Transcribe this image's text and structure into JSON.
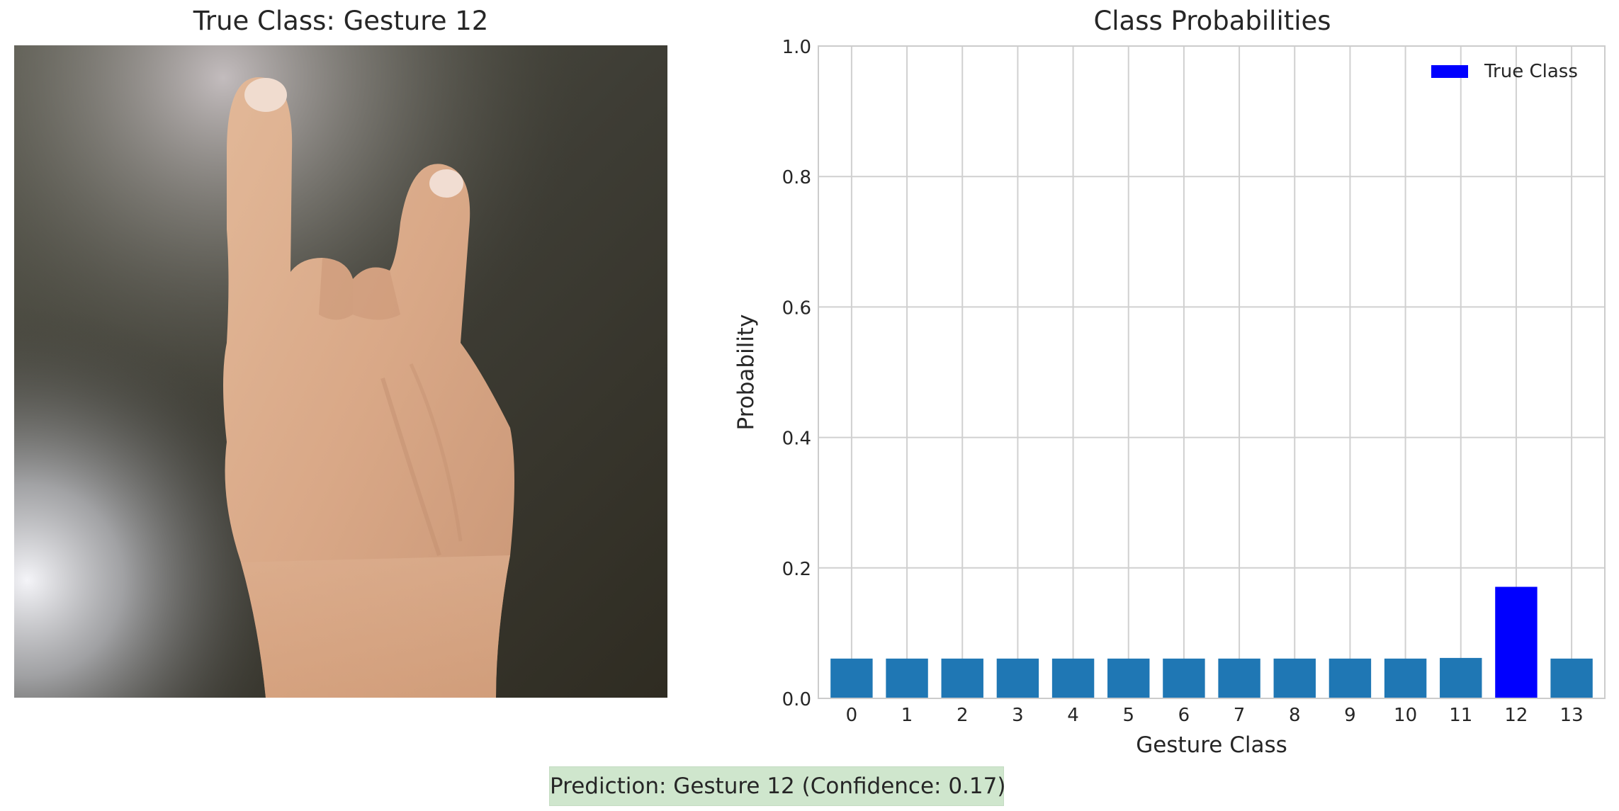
{
  "left_panel": {
    "title": "True Class: Gesture 12",
    "image_icon": "hand-gesture-photo"
  },
  "chart_data": {
    "type": "bar",
    "title": "Class Probabilities",
    "xlabel": "Gesture Class",
    "ylabel": "Probability",
    "categories": [
      "0",
      "1",
      "2",
      "3",
      "4",
      "5",
      "6",
      "7",
      "8",
      "9",
      "10",
      "11",
      "12",
      "13"
    ],
    "values": [
      0.061,
      0.061,
      0.061,
      0.061,
      0.061,
      0.061,
      0.061,
      0.061,
      0.061,
      0.061,
      0.061,
      0.062,
      0.171,
      0.061
    ],
    "ylim": [
      0,
      1.0
    ],
    "yticks": [
      "0.0",
      "0.2",
      "0.4",
      "0.6",
      "0.8",
      "1.0"
    ],
    "ytick_values": [
      0,
      0.2,
      0.4,
      0.6,
      0.8,
      1.0
    ],
    "highlight_index": 12,
    "colors": {
      "default": "#1f77b4",
      "highlight": "#0000ff",
      "grid": "#d0d0d0",
      "spine": "#cccccc"
    },
    "legend": {
      "label": "True Class",
      "placement": "top-right"
    },
    "grid": true
  },
  "prediction": {
    "text": "Prediction: Gesture 12 (Confidence: 0.17)",
    "background": "#cfe6cd"
  }
}
